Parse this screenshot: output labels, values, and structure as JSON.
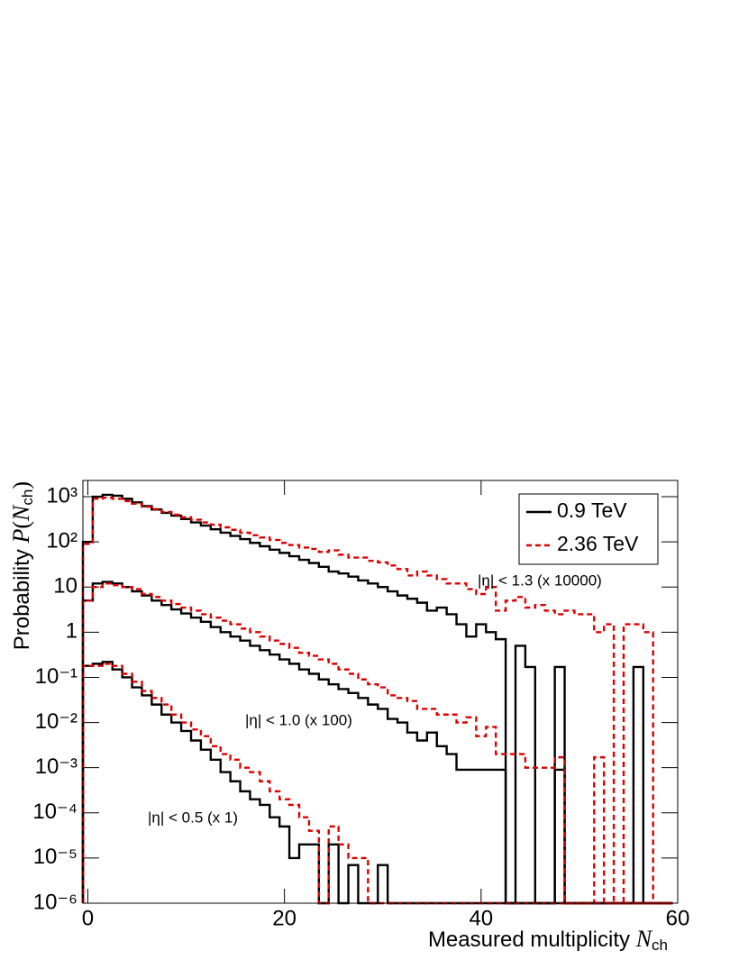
{
  "chart_data": {
    "type": "histogram",
    "xlabel": [
      "Measured multiplicity ",
      "N",
      "ch"
    ],
    "ylabel": [
      "Probability ",
      "P",
      "(",
      "N",
      "ch",
      ")"
    ],
    "log_y": true,
    "xlim": [
      -0.5,
      60
    ],
    "ylim": [
      1e-06,
      2290
    ],
    "xticks": [
      0,
      20,
      40,
      60
    ],
    "yticks": [
      {
        "value": 1e-06,
        "label": "10⁻⁶"
      },
      {
        "value": 1e-05,
        "label": "10⁻⁵"
      },
      {
        "value": 0.0001,
        "label": "10⁻⁴"
      },
      {
        "value": 0.001,
        "label": "10⁻³"
      },
      {
        "value": 0.01,
        "label": "10⁻²"
      },
      {
        "value": 0.1,
        "label": "10⁻¹"
      },
      1,
      10,
      {
        "value": 100,
        "label": "10²"
      },
      {
        "value": 1000,
        "label": "10³"
      }
    ],
    "bins": [
      -0.5,
      0.5,
      1.5,
      2.5,
      3.5,
      4.5,
      5.5,
      6.5,
      7.5,
      8.5,
      9.5,
      10.5,
      11.5,
      12.5,
      13.5,
      14.5,
      15.5,
      16.5,
      17.5,
      18.5,
      19.5,
      20.5,
      21.5,
      22.5,
      23.5,
      24.5,
      25.5,
      26.5,
      27.5,
      28.5,
      29.5,
      30.5,
      31.5,
      32.5,
      33.5,
      34.5,
      35.5,
      36.5,
      37.5,
      38.5,
      39.5,
      40.5,
      41.5,
      42.5,
      43.5,
      44.5,
      45.5,
      46.5,
      47.5,
      48.5,
      49.5,
      50.5,
      51.5,
      52.5,
      53.5,
      54.5,
      55.5,
      56.5,
      57.5,
      58.5,
      59.5
    ],
    "annotations": [
      "|η| < 1.3 (x 10000)",
      "|η| < 1.0 (x 100)",
      "|η| < 0.5 (x 1)"
    ],
    "legend": "top-right",
    "series": [
      {
        "name": "0.9 TeV",
        "color": "#000000",
        "dashed": false,
        "values": [
          [
            100,
            1000,
            1100,
            1050,
            900,
            750,
            620,
            520,
            440,
            380,
            320,
            270,
            230,
            190,
            160,
            135,
            115,
            95,
            80,
            67,
            57,
            48,
            40,
            34,
            28,
            22,
            20,
            17,
            14,
            12,
            10,
            8,
            6.5,
            5.5,
            4.5,
            3,
            3.5,
            2.5,
            1.5,
            0.8,
            1.5,
            1,
            0.7,
            0,
            0.5,
            0.17,
            0,
            0,
            0.17,
            0,
            0,
            0,
            0,
            0,
            0,
            0,
            0.17,
            0,
            0,
            0
          ],
          [
            5,
            12,
            13,
            12,
            10,
            8,
            6.5,
            5,
            4,
            3.2,
            2.6,
            2.1,
            1.7,
            1.3,
            1.0,
            0.8,
            0.65,
            0.5,
            0.4,
            0.32,
            0.25,
            0.2,
            0.15,
            0.12,
            0.09,
            0.07,
            0.055,
            0.045,
            0.035,
            0.025,
            0.02,
            0.012,
            0.01,
            0.006,
            0.004,
            0.006,
            0.003,
            0.002,
            0.0009,
            0.0009,
            0.0009,
            0.0009,
            0.0009,
            0,
            0,
            0,
            0,
            0,
            0.0009,
            0,
            0,
            0,
            0,
            0,
            0,
            0,
            0,
            0,
            0,
            0
          ],
          [
            0.18,
            0.2,
            0.22,
            0.15,
            0.1,
            0.06,
            0.04,
            0.025,
            0.015,
            0.01,
            0.0065,
            0.004,
            0.0025,
            0.0015,
            0.0008,
            0.0005,
            0.0003,
            0.0002,
            0.00015,
            8e-05,
            5e-05,
            1e-05,
            2e-05,
            2e-05,
            0,
            2e-05,
            0,
            7e-06,
            0,
            0,
            7e-06,
            0,
            0,
            0,
            0,
            0,
            0,
            0,
            0,
            0,
            0,
            0,
            0,
            0,
            0,
            0,
            0,
            0,
            0,
            0,
            0,
            0,
            0,
            0,
            0,
            0,
            0,
            0,
            0,
            0
          ]
        ]
      },
      {
        "name": "2.36 TeV",
        "color": "#dd0000",
        "dashed": true,
        "values": [
          [
            90,
            900,
            950,
            900,
            800,
            700,
            600,
            530,
            460,
            400,
            350,
            310,
            270,
            240,
            210,
            185,
            160,
            140,
            125,
            110,
            95,
            85,
            75,
            70,
            60,
            65,
            52,
            45,
            45,
            38,
            35,
            30,
            25,
            18,
            22,
            18,
            15,
            12,
            12,
            9,
            7,
            10,
            3,
            5,
            6,
            3.5,
            4,
            3,
            2.5,
            3,
            2.5,
            2.5,
            1,
            1.5,
            0,
            1.5,
            1.5,
            1,
            0,
            0
          ],
          [
            5,
            10,
            12,
            11,
            10,
            9,
            7,
            6,
            5,
            4.2,
            3.5,
            3,
            2.5,
            2.1,
            1.8,
            1.5,
            1.2,
            1.0,
            0.8,
            0.65,
            0.55,
            0.45,
            0.35,
            0.3,
            0.25,
            0.2,
            0.15,
            0.12,
            0.09,
            0.07,
            0.06,
            0.04,
            0.035,
            0.03,
            0.02,
            0.02,
            0.015,
            0.015,
            0.01,
            0.013,
            0.005,
            0.008,
            0.002,
            0.002,
            0.002,
            0.001,
            0.001,
            0.001,
            0.0017,
            0,
            0,
            0,
            0.0017,
            0,
            0,
            0,
            0,
            0,
            0,
            0
          ],
          [
            0.18,
            0.18,
            0.2,
            0.18,
            0.12,
            0.08,
            0.05,
            0.035,
            0.025,
            0.015,
            0.01,
            0.007,
            0.005,
            0.003,
            0.002,
            0.0015,
            0.001,
            0.0008,
            0.0005,
            0.0003,
            0.0002,
            0.00015,
            8e-05,
            4e-05,
            0,
            5e-05,
            2e-05,
            1e-05,
            1e-05,
            0,
            0,
            0,
            0,
            0,
            0,
            0,
            0,
            0,
            0,
            0,
            0,
            0,
            0,
            0,
            0,
            0,
            0,
            0,
            0,
            0,
            0,
            0,
            0,
            0,
            0,
            0,
            0,
            0,
            0,
            0
          ]
        ]
      }
    ]
  }
}
